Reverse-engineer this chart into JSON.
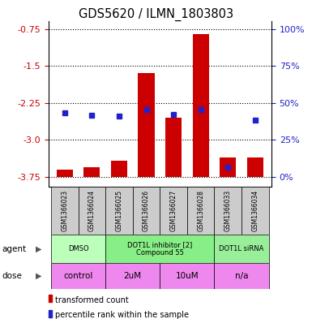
{
  "title": "GDS5620 / ILMN_1803803",
  "samples": [
    "GSM1366023",
    "GSM1366024",
    "GSM1366025",
    "GSM1366026",
    "GSM1366027",
    "GSM1366028",
    "GSM1366033",
    "GSM1366034"
  ],
  "bar_tops": [
    -3.6,
    -3.55,
    -3.42,
    -1.65,
    -2.55,
    -0.85,
    -3.35,
    -3.35
  ],
  "bar_bottom": -3.75,
  "blue_y": [
    -2.45,
    -2.5,
    -2.52,
    -2.38,
    -2.48,
    -2.38,
    -3.55,
    -2.6
  ],
  "ylim_min": -3.95,
  "ylim_max": -0.58,
  "yticks_left": [
    -0.75,
    -1.5,
    -2.25,
    -3.0,
    -3.75
  ],
  "yticks_right_vals": [
    100,
    75,
    50,
    25,
    0
  ],
  "yticks_right_pos": [
    -0.75,
    -1.5,
    -2.25,
    -3.0,
    -3.75
  ],
  "bar_color": "#cc0000",
  "blue_color": "#2222cc",
  "bg_color": "#ffffff",
  "sample_bg": "#cccccc",
  "agent_groups": [
    {
      "label": "DMSO",
      "start": 0,
      "end": 1,
      "color": "#bbffbb"
    },
    {
      "label": "DOT1L inhibitor [2]\nCompound 55",
      "start": 2,
      "end": 5,
      "color": "#88ee88"
    },
    {
      "label": "DOT1L siRNA",
      "start": 6,
      "end": 7,
      "color": "#99ee99"
    }
  ],
  "dose_groups": [
    {
      "label": "control",
      "start": 0,
      "end": 1,
      "color": "#ee88ee"
    },
    {
      "label": "2uM",
      "start": 2,
      "end": 3,
      "color": "#ee88ee"
    },
    {
      "label": "10uM",
      "start": 4,
      "end": 5,
      "color": "#ee88ee"
    },
    {
      "label": "n/a",
      "start": 6,
      "end": 7,
      "color": "#ee88ee"
    }
  ],
  "legend_items": [
    {
      "label": "transformed count",
      "color": "#cc0000"
    },
    {
      "label": "percentile rank within the sample",
      "color": "#2222cc"
    }
  ]
}
